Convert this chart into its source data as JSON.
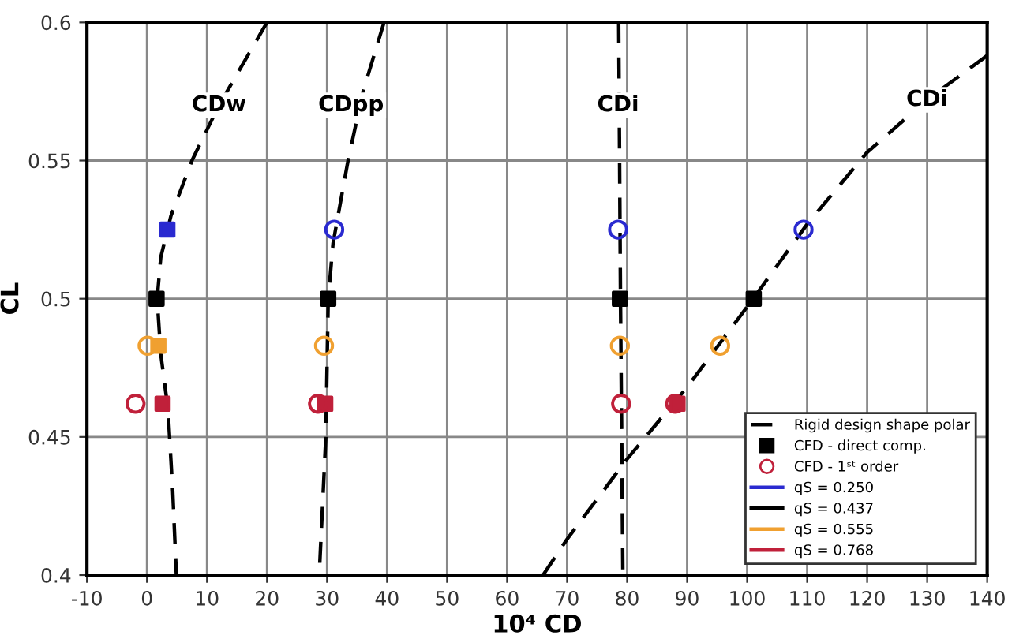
{
  "chart_data": {
    "type": "scatter",
    "xlabel": "10⁴ CD",
    "ylabel": "CL",
    "xlim": [
      -10,
      140
    ],
    "ylim": [
      0.4,
      0.6
    ],
    "xticks": [
      -10,
      0,
      10,
      20,
      30,
      40,
      50,
      60,
      70,
      80,
      90,
      100,
      110,
      120,
      130,
      140
    ],
    "yticks": [
      0.4,
      0.45,
      0.5,
      0.55,
      0.6
    ],
    "grid": true,
    "legend": "bottom right",
    "series": [
      {
        "name": "Rigid design shape polar",
        "type": "line",
        "line_style": "dashed",
        "color": "#000000",
        "x": [
          20,
          12,
          7.5,
          4,
          2.3,
          1.7,
          2.3,
          3.5,
          4.3,
          4.9
        ],
        "values": [
          0.6,
          0.57,
          0.55,
          0.53,
          0.515,
          0.5,
          0.48,
          0.46,
          0.43,
          0.4
        ]
      },
      {
        "type": "line",
        "line_style": "dashed",
        "color": "#000000",
        "x": [
          39.5,
          36,
          33.5,
          31,
          30.2,
          29.8,
          28.7
        ],
        "values": [
          0.6,
          0.575,
          0.55,
          0.52,
          0.5,
          0.45,
          0.4
        ]
      },
      {
        "type": "line",
        "line_style": "dashed",
        "color": "#000000",
        "x": [
          78.6,
          78.9,
          79.3
        ],
        "values": [
          0.6,
          0.5,
          0.4
        ]
      },
      {
        "type": "line",
        "line_style": "dashed",
        "color": "#000000",
        "x": [
          66,
          70,
          80,
          90,
          101,
          110,
          120,
          130,
          140
        ],
        "values": [
          0.4,
          0.413,
          0.442,
          0.468,
          0.5,
          0.527,
          0.553,
          0.572,
          0.588
        ]
      },
      {
        "name": "CFD - direct comp.",
        "marker": "square",
        "color": "#000000",
        "x": [
          3.4,
          1.6,
          1.9,
          2.6,
          30.2,
          29.7,
          78.8,
          101.1,
          88.4
        ],
        "values": [
          0.525,
          0.5,
          0.483,
          0.462,
          0.5,
          0.462,
          0.5,
          0.5,
          0.462
        ],
        "colors": [
          "#2a2ad0",
          "#000000",
          "#f0a030",
          "#c0203a",
          "#000000",
          "#c0203a",
          "#000000",
          "#000000",
          "#c0203a"
        ]
      },
      {
        "name": "CFD - 1ˢᵗ order",
        "marker": "circle",
        "color": "#c0203a",
        "x": [
          0.1,
          -1.9,
          31.2,
          29.5,
          28.5,
          78.5,
          78.8,
          79.0,
          109.4,
          95.5,
          88.0
        ],
        "values": [
          0.483,
          0.462,
          0.525,
          0.483,
          0.462,
          0.525,
          0.483,
          0.462,
          0.525,
          0.483,
          0.462
        ],
        "colors": [
          "#f0a030",
          "#c0203a",
          "#2a2ad0",
          "#f0a030",
          "#c0203a",
          "#2a2ad0",
          "#f0a030",
          "#c0203a",
          "#2a2ad0",
          "#f0a030",
          "#c0203a"
        ]
      },
      {
        "name": "qS = 0.250",
        "type": "line",
        "color": "#2a2ad0"
      },
      {
        "name": "qS = 0.437",
        "type": "line",
        "color": "#000000"
      },
      {
        "name": "qS = 0.555",
        "type": "line",
        "color": "#f0a030"
      },
      {
        "name": "qS = 0.768",
        "type": "line",
        "color": "#c0203a"
      }
    ],
    "annotations": [
      {
        "text": "CDw",
        "x": 12,
        "y": 0.57
      },
      {
        "text": "CDpp",
        "x": 34,
        "y": 0.57
      },
      {
        "text": "CDi",
        "x": 78.5,
        "y": 0.57
      },
      {
        "text": "CDi",
        "x": 130,
        "y": 0.572
      }
    ]
  }
}
